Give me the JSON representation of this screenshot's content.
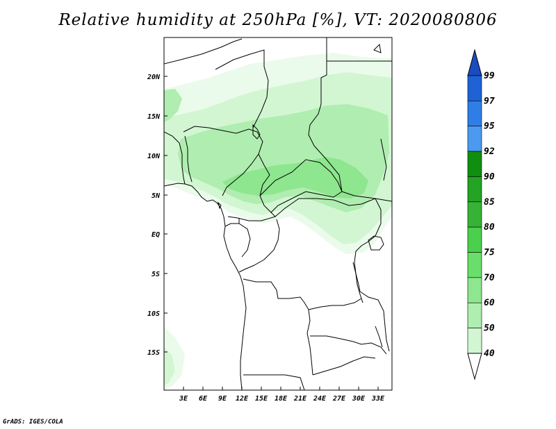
{
  "title": "Relative humidity at 250hPa [%], VT: 2020080806",
  "credit": "GrADS: IGES/COLA",
  "map": {
    "lat_labels": [
      "20N",
      "15N",
      "10N",
      "5N",
      "EQ",
      "5S",
      "10S",
      "15S"
    ],
    "lon_labels": [
      "3E",
      "6E",
      "9E",
      "12E",
      "15E",
      "18E",
      "21E",
      "24E",
      "27E",
      "30E",
      "33E"
    ]
  },
  "colorbar": {
    "levels": [
      "99",
      "97",
      "95",
      "92",
      "90",
      "85",
      "80",
      "75",
      "70",
      "60",
      "50",
      "40"
    ],
    "colors": [
      "#1f62d6",
      "#2f7ee6",
      "#4c9af0",
      "#108e10",
      "#23a323",
      "#36b336",
      "#4ccf4c",
      "#6ade6a",
      "#8ee68e",
      "#b0edb0",
      "#d2f6d2",
      "#ebfbeb"
    ],
    "top_color": "#1a4cc0",
    "bottom_color": "#ffffff"
  }
}
